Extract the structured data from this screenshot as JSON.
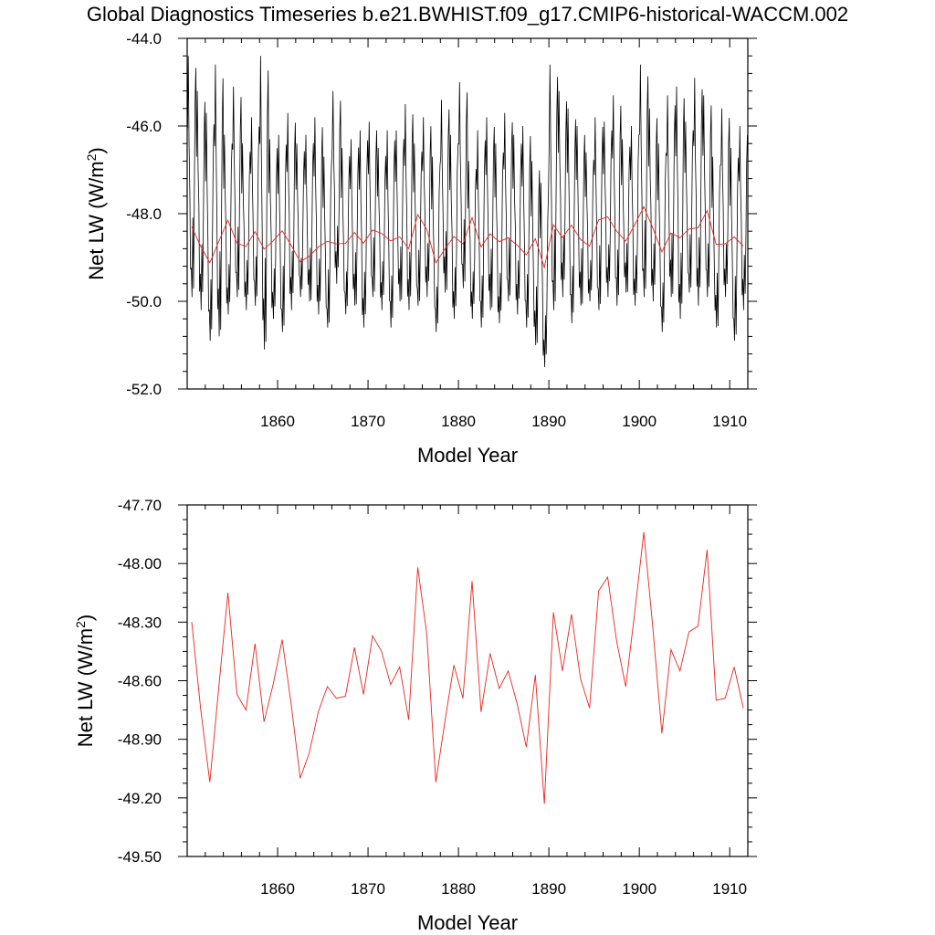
{
  "page": {
    "title": "Global Diagnostics Timeseries b.e21.BWHIST.f09_g17.CMIP6-historical-WACCM.002"
  },
  "colors": {
    "monthly": "#000000",
    "annual": "#e8261f",
    "axes": "#000000"
  },
  "chart_data": [
    {
      "type": "line",
      "xlabel": "Model Year",
      "ylabel": "Net LW (W/m",
      "ylabel_sup": "2",
      "ylabel_close": ")",
      "xlim": [
        1850,
        1912
      ],
      "ylim": [
        -52.0,
        -44.0
      ],
      "xticks": [
        1860,
        1870,
        1880,
        1890,
        1900,
        1910
      ],
      "yticks": [
        -52.0,
        -50.0,
        -48.0,
        -46.0,
        -44.0
      ],
      "yticks_labels": [
        "-52.0",
        "-50.0",
        "-48.0",
        "-46.0",
        "-44.0"
      ],
      "grid": false,
      "series": [
        {
          "kind": "monthly",
          "color": "#000000",
          "x_start": 1850.04,
          "x_step": 0.08333,
          "peaks": [
            -44.4,
            -45.2,
            -45.7,
            -44.6,
            -46.2,
            -45.1,
            -46.4,
            -45.8,
            -44.4,
            -46.3,
            -46.2,
            -45.7,
            -46.4,
            -46.2,
            -45.8,
            -46.7,
            -45.2,
            -46.5,
            -46.3,
            -46.1,
            -45.9,
            -46.5,
            -46.1,
            -46.1,
            -45.5,
            -46.4,
            -45.8,
            -46.7,
            -45.4,
            -46.2,
            -45.0,
            -46.8,
            -46.1,
            -45.8,
            -46.4,
            -45.7,
            -46.2,
            -46.0,
            -46.8,
            -47.3,
            -44.6,
            -45.2,
            -45.6,
            -46.0,
            -46.6,
            -45.8,
            -45.9,
            -45.3,
            -46.3,
            -46.0,
            -44.6,
            -45.6,
            -46.4,
            -45.3,
            -45.1,
            -45.9,
            -44.9,
            -45.3,
            -46.7,
            -45.6,
            -46.5,
            -46.0
          ],
          "troughs": [
            -49.9,
            -50.2,
            -50.9,
            -50.8,
            -50.3,
            -49.9,
            -50.2,
            -50.1,
            -51.1,
            -50.4,
            -50.7,
            -50.2,
            -49.9,
            -50.0,
            -50.3,
            -50.6,
            -49.6,
            -50.3,
            -50.1,
            -50.6,
            -49.9,
            -50.2,
            -50.6,
            -50.0,
            -50.2,
            -50.1,
            -49.9,
            -50.7,
            -49.8,
            -50.4,
            -49.7,
            -50.4,
            -50.6,
            -50.2,
            -50.5,
            -50.0,
            -50.3,
            -50.6,
            -51.0,
            -51.5,
            -50.2,
            -49.9,
            -50.5,
            -50.1,
            -50.0,
            -50.2,
            -49.9,
            -50.1,
            -49.8,
            -50.1,
            -49.9,
            -50.0,
            -50.7,
            -49.9,
            -50.4,
            -49.8,
            -50.1,
            -49.9,
            -50.6,
            -49.9,
            -50.9,
            -50.2
          ]
        },
        {
          "kind": "annual",
          "color": "#e8261f",
          "x": [
            1850.5,
            1851.5,
            1852.5,
            1853.5,
            1854.5,
            1855.5,
            1856.5,
            1857.5,
            1858.5,
            1859.5,
            1860.5,
            1861.5,
            1862.5,
            1863.5,
            1864.5,
            1865.5,
            1866.5,
            1867.5,
            1868.5,
            1869.5,
            1870.5,
            1871.5,
            1872.5,
            1873.5,
            1874.5,
            1875.5,
            1876.5,
            1877.5,
            1878.5,
            1879.5,
            1880.5,
            1881.5,
            1882.5,
            1883.5,
            1884.5,
            1885.5,
            1886.5,
            1887.5,
            1888.5,
            1889.5,
            1890.5,
            1891.5,
            1892.5,
            1893.5,
            1894.5,
            1895.5,
            1896.5,
            1897.5,
            1898.5,
            1899.5,
            1900.5,
            1901.5,
            1902.5,
            1903.5,
            1904.5,
            1905.5,
            1906.5,
            1907.5,
            1908.5,
            1909.5,
            1910.5,
            1911.5
          ],
          "values": [
            -48.3,
            -48.75,
            -49.12,
            -48.63,
            -48.15,
            -48.67,
            -48.75,
            -48.41,
            -48.81,
            -48.62,
            -48.39,
            -48.72,
            -49.1,
            -48.97,
            -48.76,
            -48.63,
            -48.69,
            -48.68,
            -48.43,
            -48.67,
            -48.37,
            -48.45,
            -48.62,
            -48.53,
            -48.8,
            -48.02,
            -48.36,
            -49.12,
            -48.81,
            -48.52,
            -48.69,
            -48.09,
            -48.76,
            -48.46,
            -48.64,
            -48.55,
            -48.72,
            -48.94,
            -48.57,
            -49.23,
            -48.25,
            -48.55,
            -48.26,
            -48.59,
            -48.74,
            -48.14,
            -48.07,
            -48.4,
            -48.63,
            -48.25,
            -47.84,
            -48.33,
            -48.87,
            -48.44,
            -48.55,
            -48.35,
            -48.32,
            -47.93,
            -48.7,
            -48.69,
            -48.53,
            -48.74
          ]
        }
      ]
    },
    {
      "type": "line",
      "xlabel": "Model Year",
      "ylabel": "Net LW (W/m",
      "ylabel_sup": "2",
      "ylabel_close": ")",
      "xlim": [
        1850,
        1912
      ],
      "ylim": [
        -49.5,
        -47.7
      ],
      "xticks": [
        1860,
        1870,
        1880,
        1890,
        1900,
        1910
      ],
      "yticks": [
        -49.5,
        -49.2,
        -48.9,
        -48.6,
        -48.3,
        -48.0,
        -47.7
      ],
      "yticks_labels": [
        "-49.50",
        "-49.20",
        "-48.90",
        "-48.60",
        "-48.30",
        "-48.00",
        "-47.70"
      ],
      "grid": false,
      "series": [
        {
          "kind": "annual",
          "color": "#e8261f",
          "x": [
            1850.5,
            1851.5,
            1852.5,
            1853.5,
            1854.5,
            1855.5,
            1856.5,
            1857.5,
            1858.5,
            1859.5,
            1860.5,
            1861.5,
            1862.5,
            1863.5,
            1864.5,
            1865.5,
            1866.5,
            1867.5,
            1868.5,
            1869.5,
            1870.5,
            1871.5,
            1872.5,
            1873.5,
            1874.5,
            1875.5,
            1876.5,
            1877.5,
            1878.5,
            1879.5,
            1880.5,
            1881.5,
            1882.5,
            1883.5,
            1884.5,
            1885.5,
            1886.5,
            1887.5,
            1888.5,
            1889.5,
            1890.5,
            1891.5,
            1892.5,
            1893.5,
            1894.5,
            1895.5,
            1896.5,
            1897.5,
            1898.5,
            1899.5,
            1900.5,
            1901.5,
            1902.5,
            1903.5,
            1904.5,
            1905.5,
            1906.5,
            1907.5,
            1908.5,
            1909.5,
            1910.5,
            1911.5
          ],
          "values": [
            -48.3,
            -48.75,
            -49.12,
            -48.63,
            -48.15,
            -48.67,
            -48.75,
            -48.41,
            -48.81,
            -48.62,
            -48.39,
            -48.72,
            -49.1,
            -48.97,
            -48.76,
            -48.63,
            -48.69,
            -48.68,
            -48.43,
            -48.67,
            -48.37,
            -48.45,
            -48.62,
            -48.53,
            -48.8,
            -48.02,
            -48.36,
            -49.12,
            -48.81,
            -48.52,
            -48.69,
            -48.09,
            -48.76,
            -48.46,
            -48.64,
            -48.55,
            -48.72,
            -48.94,
            -48.57,
            -49.23,
            -48.25,
            -48.55,
            -48.26,
            -48.59,
            -48.74,
            -48.14,
            -48.07,
            -48.4,
            -48.63,
            -48.25,
            -47.84,
            -48.33,
            -48.87,
            -48.44,
            -48.55,
            -48.35,
            -48.32,
            -47.93,
            -48.7,
            -48.69,
            -48.53,
            -48.74
          ]
        }
      ]
    }
  ]
}
